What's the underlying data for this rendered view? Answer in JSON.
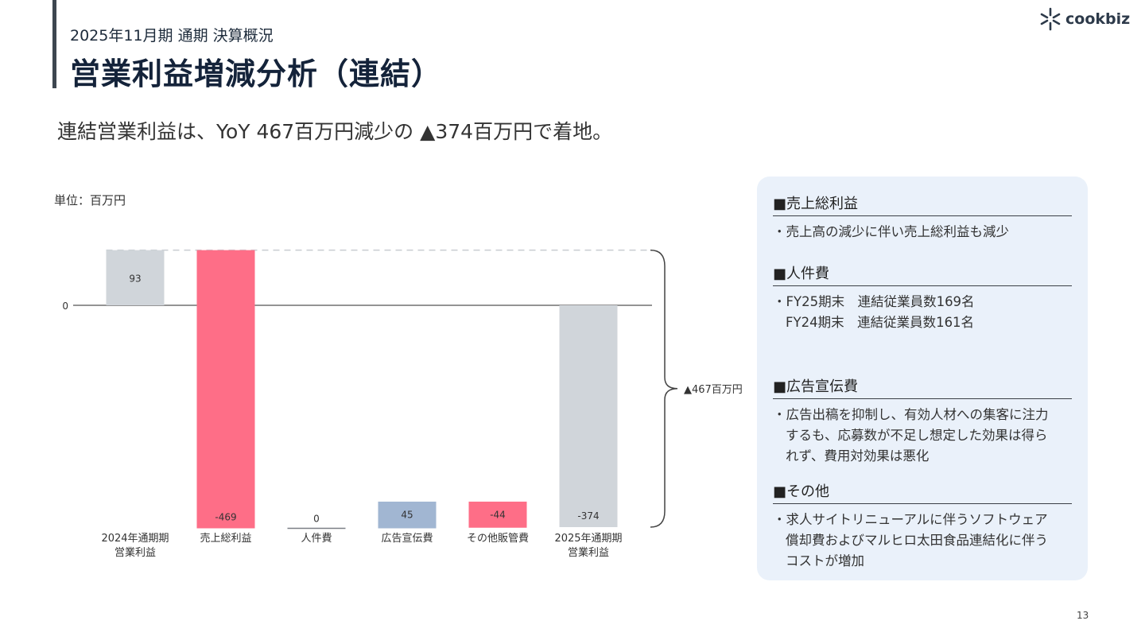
{
  "header": {
    "subtitle": "2025年11月期 通期 決算概況",
    "title": "営業利益増減分析（連結）"
  },
  "logo": {
    "text": "cookbiz",
    "icon": "asterisk-spark-icon"
  },
  "lead": "連結営業利益は、YoY 467百万円減少の ▲374百万円で着地。",
  "unit": "単位：百万円",
  "chart_data": {
    "type": "bar",
    "subtype": "waterfall",
    "zero_label": "0",
    "categories": [
      [
        "2024年通期期",
        "営業利益"
      ],
      [
        "売上総利益"
      ],
      [
        "人件費"
      ],
      [
        "広告宣伝費"
      ],
      [
        "その他販管費"
      ],
      [
        "2025年通期期",
        "営業利益"
      ]
    ],
    "values": [
      93,
      -469,
      0,
      45,
      -44,
      -374
    ],
    "value_labels": [
      "93",
      "-469",
      "0",
      "45",
      "-44",
      "-374"
    ],
    "kinds": [
      "total",
      "delta",
      "delta",
      "delta",
      "delta",
      "total"
    ],
    "ylim": [
      -374,
      93
    ],
    "grid": false,
    "bracket_label": "▲467百万円",
    "colors": {
      "total": "#d0d5da",
      "negative": "#fe6e87",
      "positive": "#a1b6d2",
      "zero": "#7a7f86"
    }
  },
  "panel": {
    "sections": [
      {
        "heading": "■売上総利益",
        "lines": [
          "・売上高の減少に伴い売上総利益も減少"
        ]
      },
      {
        "heading": "■人件費",
        "lines": [
          "・FY25期末　連結従業員数169名",
          "FY24期末　連結従業員数161名"
        ]
      },
      {
        "heading": "■広告宣伝費",
        "lines": [
          "・広告出稿を抑制し、有効人材への集客に注力",
          "するも、応募数が不足し想定した効果は得ら",
          "れず、費用対効果は悪化"
        ]
      },
      {
        "heading": "■その他",
        "lines": [
          "・求人サイトリニューアルに伴うソフトウェア",
          "償却費およびマルヒロ太田食品連結化に伴う",
          "コストが増加"
        ]
      }
    ]
  },
  "page_number": "13"
}
